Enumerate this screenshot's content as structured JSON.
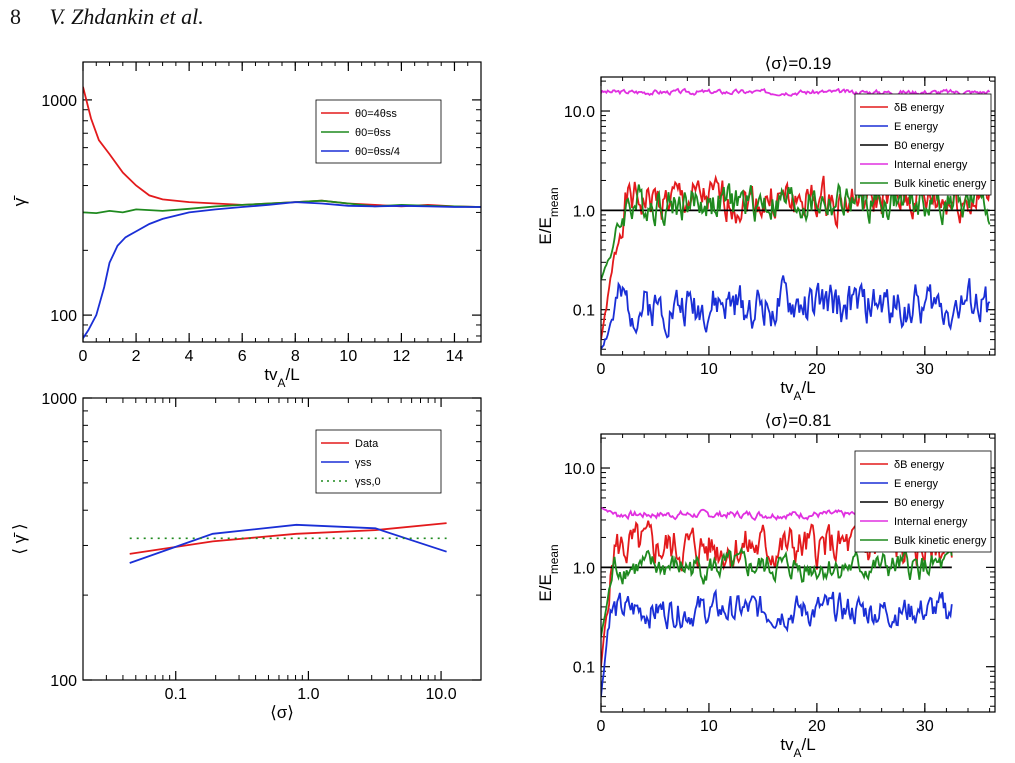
{
  "header": {
    "page_number": "8",
    "authors": "V. Zhdankin et al."
  },
  "colors": {
    "red": "#e31a1c",
    "green": "#1f8a1f",
    "blue": "#1a2fd6",
    "black": "#000000",
    "magenta": "#e030e0"
  },
  "chart_data": [
    {
      "id": "tl",
      "type": "line",
      "title": "",
      "xlabel": "tv_A/L",
      "ylabel": "γ̄",
      "xlim": [
        0,
        15
      ],
      "ylim": [
        75,
        1500
      ],
      "ylog": true,
      "xticks": [
        0,
        2,
        4,
        6,
        8,
        10,
        12,
        14
      ],
      "xticklabels": [
        "0",
        "2",
        "4",
        "6",
        "8",
        "10",
        "12",
        "14"
      ],
      "yticks": [
        100,
        1000
      ],
      "yticklabels": [
        "100",
        "1000"
      ],
      "legend_position": "upper-right",
      "series": [
        {
          "name": "θ0=4θss",
          "color": "red",
          "x": [
            0,
            0.3,
            0.6,
            1.0,
            1.5,
            2.0,
            2.5,
            3.0,
            4.0,
            5.0,
            6.0,
            7.0,
            8.0,
            9.0,
            10.0,
            11.0,
            12.0,
            13.0,
            14.0,
            15.0
          ],
          "y": [
            1150,
            820,
            650,
            560,
            460,
            400,
            360,
            345,
            335,
            330,
            325,
            330,
            335,
            340,
            330,
            325,
            320,
            325,
            320,
            318
          ]
        },
        {
          "name": "θ0=θss",
          "color": "green",
          "x": [
            0,
            0.5,
            1.0,
            1.5,
            2.0,
            3.0,
            4.0,
            5.0,
            6.0,
            7.0,
            8.0,
            9.0,
            10.0,
            11.0,
            12.0,
            13.0,
            14.0,
            15.0
          ],
          "y": [
            300,
            298,
            305,
            300,
            310,
            305,
            312,
            320,
            325,
            330,
            335,
            340,
            330,
            320,
            325,
            322,
            320,
            318
          ]
        },
        {
          "name": "θ0=θss/4",
          "color": "blue",
          "x": [
            0,
            0.2,
            0.5,
            0.8,
            1.0,
            1.3,
            1.6,
            2.0,
            2.5,
            3.0,
            3.5,
            4.0,
            5.0,
            6.0,
            7.0,
            8.0,
            9.0,
            10.0,
            11.0,
            12.0,
            13.0,
            14.0,
            15.0
          ],
          "y": [
            78,
            85,
            100,
            135,
            175,
            210,
            230,
            245,
            265,
            280,
            290,
            300,
            310,
            318,
            325,
            335,
            330,
            322,
            320,
            322,
            320,
            318,
            318
          ]
        }
      ]
    },
    {
      "id": "bl",
      "type": "line",
      "title": "",
      "xlabel": "⟨σ⟩",
      "ylabel": "⟨ γ̄ ⟩",
      "xlim": [
        0.02,
        20
      ],
      "ylim": [
        100,
        1000
      ],
      "xlog": true,
      "ylog": true,
      "xticks": [
        0.1,
        1,
        10
      ],
      "xticklabels": [
        "0.1",
        "1.0",
        "10.0"
      ],
      "yticks": [
        100,
        1000
      ],
      "yticklabels": [
        "100",
        "1000"
      ],
      "legend_position": "upper-right",
      "series": [
        {
          "name": "Data",
          "color": "red",
          "x": [
            0.045,
            0.19,
            0.81,
            3.2,
            11
          ],
          "y": [
            280,
            310,
            330,
            340,
            360
          ]
        },
        {
          "name": "γss",
          "color": "blue",
          "x": [
            0.045,
            0.19,
            0.81,
            3.2,
            11
          ],
          "y": [
            260,
            330,
            355,
            345,
            285
          ]
        },
        {
          "name": "γss,0",
          "color": "green",
          "dash": true,
          "x": [
            0.045,
            11
          ],
          "y": [
            318,
            318
          ]
        }
      ]
    },
    {
      "id": "tr",
      "type": "line",
      "title": "⟨σ⟩=0.19",
      "xlabel": "tv_A/L",
      "ylabel": "E/E_mean",
      "xlim": [
        0,
        36.5
      ],
      "ylim": [
        0.035,
        22
      ],
      "ylog": true,
      "xticks": [
        0,
        10,
        20,
        30
      ],
      "xticklabels": [
        "0",
        "10",
        "20",
        "30"
      ],
      "yticks": [
        0.1,
        1,
        10
      ],
      "yticklabels": [
        "0.1",
        "1.0",
        "10.0"
      ],
      "legend_position": "upper-right",
      "series": [
        {
          "name": "δB energy",
          "color": "red",
          "gen": {
            "seed": 1,
            "base": 1.25,
            "amp": 0.32,
            "rise": 2.2,
            "start": 0.05
          }
        },
        {
          "name": "E energy",
          "color": "blue",
          "gen": {
            "seed": 2,
            "base": 0.11,
            "amp": 0.35,
            "rise": 1.5,
            "start": 0.04
          }
        },
        {
          "name": "B0 energy",
          "color": "black",
          "x": [
            0,
            36
          ],
          "y": [
            1.0,
            1.0
          ]
        },
        {
          "name": "Internal energy",
          "color": "magenta",
          "gen": {
            "seed": 3,
            "base": 15.5,
            "amp": 0.04,
            "rise": 0,
            "start": 15.5
          }
        },
        {
          "name": "Bulk kinetic energy",
          "color": "green",
          "gen": {
            "seed": 4,
            "base": 1.2,
            "amp": 0.3,
            "rise": 2.5,
            "start": 0.2
          }
        }
      ]
    },
    {
      "id": "br",
      "type": "line",
      "title": "⟨σ⟩=0.81",
      "xlabel": "tv_A/L",
      "ylabel": "E/E_mean",
      "xlim": [
        0,
        36.5
      ],
      "ylim": [
        0.035,
        22
      ],
      "ylog": true,
      "xticks": [
        0,
        10,
        20,
        30
      ],
      "xticklabels": [
        "0",
        "10",
        "20",
        "30"
      ],
      "yticks": [
        0.1,
        1,
        10
      ],
      "yticklabels": [
        "0.1",
        "1.0",
        "10.0"
      ],
      "legend_position": "upper-right",
      "series": [
        {
          "name": "δB energy",
          "color": "red",
          "gen": {
            "seed": 5,
            "base": 1.6,
            "amp": 0.35,
            "rise": 1.2,
            "start": 0.1
          }
        },
        {
          "name": "E energy",
          "color": "blue",
          "gen": {
            "seed": 6,
            "base": 0.37,
            "amp": 0.25,
            "rise": 0.8,
            "start": 0.05
          }
        },
        {
          "name": "B0 energy",
          "color": "black",
          "x": [
            0,
            32.5
          ],
          "y": [
            1.0,
            1.0
          ]
        },
        {
          "name": "Internal energy",
          "color": "magenta",
          "gen": {
            "seed": 7,
            "base": 3.4,
            "amp": 0.06,
            "rise": 0,
            "start": 4.0
          }
        },
        {
          "name": "Bulk kinetic energy",
          "color": "green",
          "gen": {
            "seed": 8,
            "base": 1.0,
            "amp": 0.22,
            "rise": 1.2,
            "start": 0.2
          }
        }
      ]
    }
  ]
}
